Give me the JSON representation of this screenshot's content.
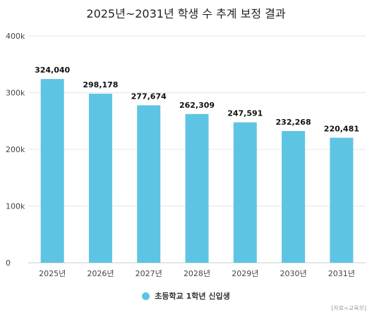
{
  "chart_data": {
    "type": "bar",
    "title": "2025년~2031년 학생 수 추계 보정 결과",
    "categories": [
      "2025년",
      "2026년",
      "2027년",
      "2028년",
      "2029년",
      "2030년",
      "2031년"
    ],
    "series": [
      {
        "name": "초등학교 1학년 신입생",
        "values": [
          324040,
          298178,
          277674,
          262309,
          247591,
          232268,
          220481
        ],
        "data_labels": [
          "324,040",
          "298,178",
          "277,674",
          "262,309",
          "247,591",
          "232,268",
          "220,481"
        ]
      }
    ],
    "y_ticks": [
      {
        "value": 0,
        "label": "0"
      },
      {
        "value": 100000,
        "label": "100k"
      },
      {
        "value": 200000,
        "label": "200k"
      },
      {
        "value": 300000,
        "label": "300k"
      },
      {
        "value": 400000,
        "label": "400k"
      }
    ],
    "ylim": [
      0,
      400000
    ],
    "grid": true,
    "legend_position": "bottom-center",
    "source": "[자료=교육부]",
    "colors": {
      "bar": "#5ec4e3",
      "grid": "#e6e6e6",
      "axis": "#cccccc"
    }
  }
}
